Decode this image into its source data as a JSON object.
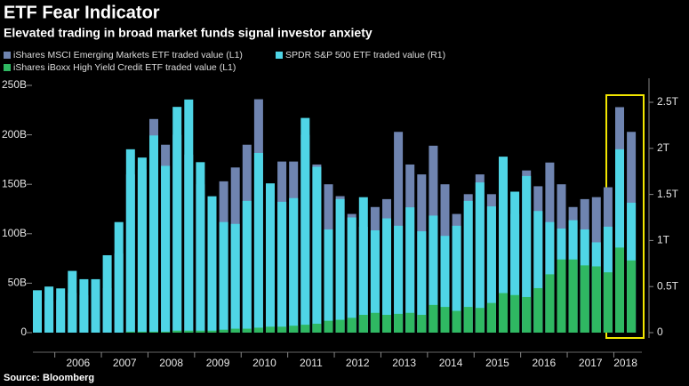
{
  "chart_data": {
    "type": "bar",
    "title": "ETF Fear Indicator",
    "subtitle": "Elevated trading in broad market funds signal investor anxiety",
    "source": "Source: Bloomberg",
    "categories": [
      null,
      null,
      null,
      null,
      null,
      null,
      null,
      null,
      null,
      null,
      null,
      null,
      null,
      null,
      null,
      null,
      null,
      null,
      null,
      null,
      null,
      null,
      null,
      null,
      null,
      null,
      null,
      null,
      null,
      null,
      null,
      null,
      null,
      null,
      null,
      null,
      null,
      null,
      null,
      null,
      null,
      null,
      null,
      null,
      null,
      null,
      null,
      null,
      null,
      null,
      null,
      null
    ],
    "year_labels": [
      "2006",
      "2007",
      "2008",
      "2009",
      "2010",
      "2011",
      "2012",
      "2013",
      "2014",
      "2015",
      "2016",
      "2017",
      "2018"
    ],
    "series": [
      {
        "name": "iShares MSCI Emerging Markets ETF traded value (L1)",
        "color": "#6f84b0",
        "axis": "y",
        "values": [
          30,
          32,
          33,
          40,
          38,
          38,
          45,
          80,
          160,
          165,
          216,
          190,
          200,
          180,
          150,
          110,
          153,
          167,
          190,
          236,
          150,
          173,
          173,
          200,
          170,
          150,
          138,
          120,
          107,
          127,
          135,
          203,
          170,
          160,
          189,
          150,
          120,
          140,
          160,
          140,
          110,
          120,
          164,
          148,
          172,
          150,
          127,
          135,
          137,
          147,
          228,
          203
        ]
      },
      {
        "name": "SPDR S&P 500 ETF traded value (R1)",
        "color": "#4fd5e6",
        "axis": "y2",
        "values": [
          0.46,
          0.5,
          0.48,
          0.67,
          0.58,
          0.58,
          0.84,
          1.2,
          1.99,
          1.9,
          2.14,
          1.81,
          2.45,
          2.53,
          1.85,
          1.48,
          1.2,
          1.18,
          1.43,
          1.95,
          1.62,
          1.42,
          1.46,
          2.33,
          1.8,
          1.12,
          1.45,
          1.25,
          1.47,
          1.11,
          1.24,
          1.16,
          1.36,
          1.1,
          1.27,
          1.05,
          1.16,
          1.43,
          1.63,
          1.37,
          1.91,
          1.53,
          1.7,
          1.32,
          1.2,
          1.13,
          1.22,
          1.12,
          0.98,
          1.15,
          1.99,
          1.41
        ]
      },
      {
        "name": "iShares iBoxx High Yield Credit ETF traded value (L1)",
        "color": "#2fb862",
        "axis": "y",
        "values": [
          0,
          0,
          0,
          0,
          0,
          0,
          0,
          0,
          1,
          1,
          1,
          1,
          2,
          2,
          2,
          2,
          3,
          4,
          4,
          5,
          6,
          6,
          7,
          8,
          9,
          12,
          13,
          15,
          18,
          20,
          18,
          19,
          20,
          18,
          28,
          26,
          22,
          26,
          25,
          30,
          40,
          38,
          36,
          45,
          59,
          74,
          74,
          68,
          67,
          61,
          86,
          73
        ]
      }
    ],
    "ylim": [
      0,
      250
    ],
    "yticks": [
      0,
      {
        "value": 50,
        "label": "50B"
      },
      {
        "value": 100,
        "label": "100B"
      },
      {
        "value": 150,
        "label": "150B"
      },
      {
        "value": 200,
        "label": "200B"
      },
      {
        "value": 250,
        "label": "250B"
      }
    ],
    "y2lim": [
      0,
      2.5
    ],
    "y2ticks": [
      0,
      {
        "value": 0.5,
        "label": "0.5T"
      },
      {
        "value": 1,
        "label": "1T"
      },
      {
        "value": 1.5,
        "label": "1.5T"
      },
      {
        "value": 2,
        "label": "2T"
      },
      {
        "value": 2.5,
        "label": "2.5T"
      }
    ],
    "grid": false
  }
}
